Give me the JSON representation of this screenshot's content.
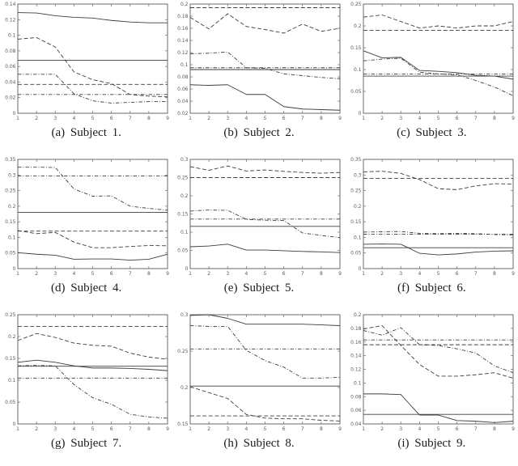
{
  "colors": {
    "background": "#ffffff",
    "axis": "#6a6a6a",
    "tick_label": "#5a5a5a",
    "line": "#3d3d3d",
    "caption_text": "#1c1c1c"
  },
  "chart_data": [
    {
      "type": "line",
      "caption": "(a) Subject 1.",
      "x": [
        1,
        2,
        3,
        4,
        5,
        6,
        7,
        8,
        9
      ],
      "xlim": [
        1,
        9
      ],
      "ylim": [
        0,
        0.14
      ],
      "ytick_step": 0.02,
      "grid": false,
      "legend": "none",
      "series": [
        {
          "name": "solid-curve",
          "style": "solid",
          "values": [
            0.129,
            0.1285,
            0.125,
            0.123,
            0.122,
            0.119,
            0.117,
            0.116,
            0.116
          ]
        },
        {
          "name": "dashed-curve",
          "style": "dashed",
          "values": [
            0.095,
            0.097,
            0.085,
            0.053,
            0.043,
            0.038,
            0.024,
            0.022,
            0.021
          ]
        },
        {
          "name": "dashdot-curve",
          "style": "dashdot",
          "values": [
            0.05,
            0.05,
            0.05,
            0.025,
            0.016,
            0.013,
            0.014,
            0.015,
            0.015
          ]
        }
      ],
      "hlines": [
        {
          "name": "solid-reference",
          "style": "solid",
          "y": 0.068
        },
        {
          "name": "dashed-reference",
          "style": "dashed",
          "y": 0.037
        },
        {
          "name": "dashdot-reference",
          "style": "dashdot",
          "y": 0.024
        }
      ]
    },
    {
      "type": "line",
      "caption": "(b) Subject 2.",
      "x": [
        1,
        2,
        3,
        4,
        5,
        6,
        7,
        8,
        9
      ],
      "xlim": [
        1,
        9
      ],
      "ylim": [
        0.02,
        0.2
      ],
      "ytick_step": 0.02,
      "grid": false,
      "legend": "none",
      "series": [
        {
          "name": "solid-curve",
          "style": "solid",
          "values": [
            0.067,
            0.066,
            0.067,
            0.051,
            0.051,
            0.031,
            0.027,
            0.026,
            0.025
          ]
        },
        {
          "name": "dashed-curve",
          "style": "dashed",
          "values": [
            0.178,
            0.159,
            0.184,
            0.163,
            0.158,
            0.152,
            0.167,
            0.155,
            0.16
          ]
        },
        {
          "name": "dashdot-curve",
          "style": "dashdot",
          "values": [
            0.118,
            0.119,
            0.121,
            0.095,
            0.094,
            0.085,
            0.082,
            0.079,
            0.077
          ]
        }
      ],
      "hlines": [
        {
          "name": "solid-reference",
          "style": "solid",
          "y": 0.092
        },
        {
          "name": "dashed-reference",
          "style": "dashed",
          "y": 0.194
        },
        {
          "name": "dashdot-reference",
          "style": "dashdot",
          "y": 0.095
        }
      ]
    },
    {
      "type": "line",
      "caption": "(c) Subject 3.",
      "x": [
        1,
        2,
        3,
        4,
        5,
        6,
        7,
        8,
        9
      ],
      "xlim": [
        1,
        9
      ],
      "ylim": [
        0,
        0.25
      ],
      "ytick_step": 0.05,
      "grid": false,
      "legend": "none",
      "series": [
        {
          "name": "solid-curve",
          "style": "solid",
          "values": [
            0.143,
            0.127,
            0.128,
            0.098,
            0.096,
            0.093,
            0.087,
            0.085,
            0.078
          ]
        },
        {
          "name": "dashed-curve",
          "style": "dashed",
          "values": [
            0.22,
            0.225,
            0.21,
            0.195,
            0.2,
            0.195,
            0.2,
            0.2,
            0.21
          ]
        },
        {
          "name": "dashdot-curve",
          "style": "dashdot",
          "values": [
            0.12,
            0.124,
            0.126,
            0.094,
            0.09,
            0.088,
            0.075,
            0.06,
            0.04
          ]
        }
      ],
      "hlines": [
        {
          "name": "solid-reference",
          "style": "solid",
          "y": 0.085
        },
        {
          "name": "dashed-reference",
          "style": "dashed",
          "y": 0.19
        },
        {
          "name": "dashdot-reference",
          "style": "dashdot",
          "y": 0.09
        }
      ]
    },
    {
      "type": "line",
      "caption": "(d) Subject 4.",
      "x": [
        1,
        2,
        3,
        4,
        5,
        6,
        7,
        8,
        9
      ],
      "xlim": [
        1,
        9
      ],
      "ylim": [
        0,
        0.35
      ],
      "ytick_step": 0.05,
      "grid": false,
      "legend": "none",
      "series": [
        {
          "name": "solid-curve",
          "style": "solid",
          "values": [
            0.051,
            0.046,
            0.043,
            0.03,
            0.031,
            0.031,
            0.027,
            0.03,
            0.046
          ]
        },
        {
          "name": "dashed-curve",
          "style": "dashed",
          "values": [
            0.122,
            0.112,
            0.116,
            0.085,
            0.067,
            0.067,
            0.071,
            0.074,
            0.073
          ]
        },
        {
          "name": "dashdot-curve",
          "style": "dashdot",
          "values": [
            0.325,
            0.325,
            0.324,
            0.255,
            0.232,
            0.233,
            0.2,
            0.193,
            0.187
          ]
        }
      ],
      "hlines": [
        {
          "name": "solid-reference",
          "style": "solid",
          "y": 0.18
        },
        {
          "name": "dashed-reference",
          "style": "dashed",
          "y": 0.12
        },
        {
          "name": "dashdot-reference",
          "style": "dashdot",
          "y": 0.297
        }
      ]
    },
    {
      "type": "line",
      "caption": "(e) Subject 5.",
      "x": [
        1,
        2,
        3,
        4,
        5,
        6,
        7,
        8,
        9
      ],
      "xlim": [
        1,
        9
      ],
      "ylim": [
        0,
        0.3
      ],
      "ytick_step": 0.05,
      "grid": false,
      "legend": "none",
      "series": [
        {
          "name": "solid-curve",
          "style": "solid",
          "values": [
            0.06,
            0.062,
            0.067,
            0.051,
            0.051,
            0.049,
            0.047,
            0.046,
            0.044
          ]
        },
        {
          "name": "dashed-curve",
          "style": "dashed",
          "values": [
            0.28,
            0.27,
            0.282,
            0.268,
            0.271,
            0.267,
            0.264,
            0.262,
            0.264
          ]
        },
        {
          "name": "dashdot-curve",
          "style": "dashdot",
          "values": [
            0.158,
            0.161,
            0.16,
            0.135,
            0.133,
            0.132,
            0.098,
            0.091,
            0.085
          ]
        }
      ],
      "hlines": [
        {
          "name": "solid-reference",
          "style": "solid",
          "y": 0.116
        },
        {
          "name": "dashed-reference",
          "style": "dashed",
          "y": 0.25
        },
        {
          "name": "dashdot-reference",
          "style": "dashdot",
          "y": 0.136
        }
      ]
    },
    {
      "type": "line",
      "caption": "(f) Subject 6.",
      "x": [
        1,
        2,
        3,
        4,
        5,
        6,
        7,
        8,
        9
      ],
      "xlim": [
        1,
        9
      ],
      "ylim": [
        0,
        0.35
      ],
      "ytick_step": 0.05,
      "grid": false,
      "legend": "none",
      "series": [
        {
          "name": "solid-curve",
          "style": "solid",
          "values": [
            0.078,
            0.079,
            0.078,
            0.049,
            0.044,
            0.047,
            0.053,
            0.056,
            0.057
          ]
        },
        {
          "name": "dashed-curve",
          "style": "dashed",
          "values": [
            0.31,
            0.312,
            0.305,
            0.285,
            0.256,
            0.253,
            0.265,
            0.272,
            0.271
          ]
        },
        {
          "name": "dashdot-curve",
          "style": "dashdot",
          "values": [
            0.117,
            0.118,
            0.119,
            0.113,
            0.112,
            0.113,
            0.112,
            0.109,
            0.108
          ]
        }
      ],
      "hlines": [
        {
          "name": "solid-reference",
          "style": "solid",
          "y": 0.067
        },
        {
          "name": "dashed-reference",
          "style": "dashed",
          "y": 0.289
        },
        {
          "name": "dashdot-reference",
          "style": "dashdot",
          "y": 0.11
        }
      ]
    },
    {
      "type": "line",
      "caption": "(g) Subject 7.",
      "x": [
        1,
        2,
        3,
        4,
        5,
        6,
        7,
        8,
        9
      ],
      "xlim": [
        1,
        9
      ],
      "ylim": [
        0,
        0.25
      ],
      "ytick_step": 0.05,
      "grid": false,
      "legend": "none",
      "series": [
        {
          "name": "solid-curve",
          "style": "solid",
          "values": [
            0.141,
            0.146,
            0.141,
            0.133,
            0.128,
            0.128,
            0.127,
            0.125,
            0.122
          ]
        },
        {
          "name": "dashed-curve",
          "style": "dashed",
          "values": [
            0.191,
            0.207,
            0.198,
            0.185,
            0.18,
            0.178,
            0.162,
            0.153,
            0.148
          ]
        },
        {
          "name": "dashdot-curve",
          "style": "dashdot",
          "values": [
            0.133,
            0.134,
            0.133,
            0.09,
            0.06,
            0.045,
            0.022,
            0.016,
            0.013
          ]
        }
      ],
      "hlines": [
        {
          "name": "solid-reference",
          "style": "solid",
          "y": 0.132
        },
        {
          "name": "dashed-reference",
          "style": "dashed",
          "y": 0.223
        },
        {
          "name": "dashdot-reference",
          "style": "dashdot",
          "y": 0.105
        }
      ]
    },
    {
      "type": "line",
      "caption": "(h) Subject 8.",
      "x": [
        1,
        2,
        3,
        4,
        5,
        6,
        7,
        8,
        9
      ],
      "xlim": [
        1,
        9
      ],
      "ylim": [
        0.15,
        0.3
      ],
      "ytick_step": 0.05,
      "grid": false,
      "legend": "none",
      "series": [
        {
          "name": "solid-curve",
          "style": "solid",
          "values": [
            0.299,
            0.3,
            0.295,
            0.287,
            0.287,
            0.287,
            0.287,
            0.286,
            0.285
          ]
        },
        {
          "name": "dashed-curve",
          "style": "dashed",
          "values": [
            0.201,
            0.193,
            0.185,
            0.163,
            0.158,
            0.157,
            0.157,
            0.155,
            0.154
          ]
        },
        {
          "name": "dashdot-curve",
          "style": "dashdot",
          "values": [
            0.285,
            0.284,
            0.284,
            0.251,
            0.237,
            0.228,
            0.213,
            0.213,
            0.214
          ]
        }
      ],
      "hlines": [
        {
          "name": "solid-reference",
          "style": "solid",
          "y": 0.202
        },
        {
          "name": "dashed-reference",
          "style": "dashed",
          "y": 0.161
        },
        {
          "name": "dashdot-reference",
          "style": "dashdot",
          "y": 0.253
        }
      ]
    },
    {
      "type": "line",
      "caption": "(i) Subject 9.",
      "x": [
        1,
        2,
        3,
        4,
        5,
        6,
        7,
        8,
        9
      ],
      "xlim": [
        1,
        9
      ],
      "ylim": [
        0.04,
        0.2
      ],
      "ytick_step": 0.02,
      "grid": false,
      "legend": "none",
      "series": [
        {
          "name": "solid-curve",
          "style": "solid",
          "values": [
            0.084,
            0.084,
            0.083,
            0.053,
            0.053,
            0.045,
            0.044,
            0.042,
            0.044
          ]
        },
        {
          "name": "dashed-curve",
          "style": "dashed",
          "values": [
            0.179,
            0.184,
            0.155,
            0.127,
            0.11,
            0.11,
            0.112,
            0.115,
            0.107
          ]
        },
        {
          "name": "dashdot-curve",
          "style": "dashdot",
          "values": [
            0.177,
            0.17,
            0.181,
            0.156,
            0.155,
            0.15,
            0.144,
            0.125,
            0.115
          ]
        }
      ],
      "hlines": [
        {
          "name": "solid-reference",
          "style": "solid",
          "y": 0.054
        },
        {
          "name": "dashed-reference",
          "style": "dashed",
          "y": 0.156
        },
        {
          "name": "dashdot-reference",
          "style": "dashdot",
          "y": 0.163
        }
      ]
    }
  ]
}
